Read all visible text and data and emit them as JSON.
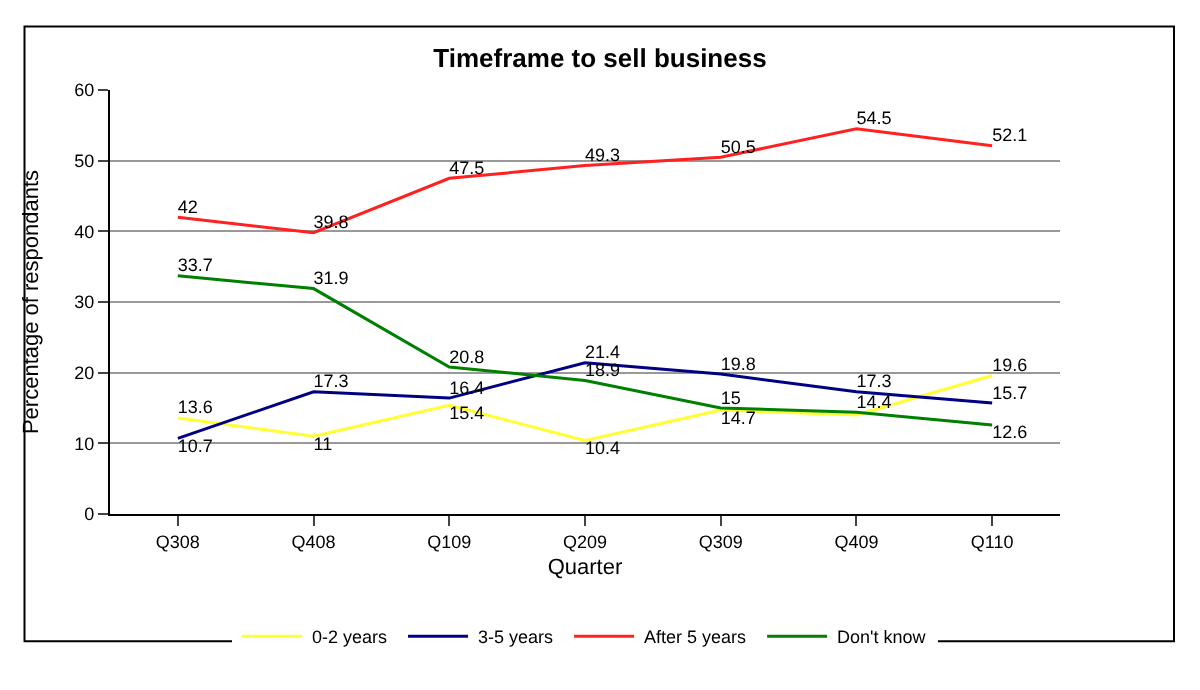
{
  "chart_data": {
    "type": "line",
    "title": "Timeframe to sell business",
    "xlabel": "Quarter",
    "ylabel": "Percentage of respondants",
    "categories": [
      "Q308",
      "Q408",
      "Q109",
      "Q209",
      "Q309",
      "Q409",
      "Q110"
    ],
    "series": [
      {
        "name": "0-2 years",
        "color": "#ffff33",
        "values": [
          13.6,
          11,
          15.4,
          10.4,
          14.7,
          14,
          19.6
        ],
        "value_labels": [
          "13.6",
          "11",
          "15.4",
          "10.4",
          "14.7",
          null,
          "19.6"
        ]
      },
      {
        "name": "3-5 years",
        "color": "#000080",
        "values": [
          10.7,
          17.3,
          16.4,
          21.4,
          19.8,
          17.3,
          15.7
        ],
        "value_labels": [
          "10.7",
          "17.3",
          "16.4",
          "21.4",
          "19.8",
          "17.3",
          "15.7"
        ]
      },
      {
        "name": "After 5 years",
        "color": "#ff2020",
        "values": [
          42,
          39.8,
          47.5,
          49.3,
          50.5,
          54.5,
          52.1
        ],
        "value_labels": [
          "42",
          "39.8",
          "47.5",
          "49.3",
          "50.5",
          "54.5",
          "52.1"
        ]
      },
      {
        "name": "Don't know",
        "color": "#008000",
        "values": [
          33.7,
          31.9,
          20.8,
          18.9,
          15,
          14.4,
          12.6
        ],
        "value_labels": [
          "33.7",
          "31.9",
          "20.8",
          "18.9",
          "15",
          "14.4",
          "12.6"
        ]
      }
    ],
    "ylim": [
      0,
      60
    ],
    "yticks": [
      0,
      10,
      20,
      30,
      40,
      50,
      60
    ],
    "grid": "y",
    "legend": "bottom",
    "marker": "none",
    "line_style": "solid"
  }
}
